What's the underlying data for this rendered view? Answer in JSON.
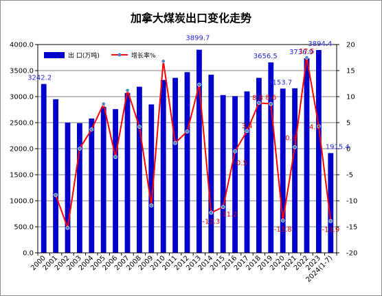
{
  "chart_data": {
    "type": "bar",
    "title": "加拿大煤炭出口变化走势",
    "categories": [
      "2000",
      "2001",
      "2002",
      "2003",
      "2004",
      "2005",
      "2006",
      "2007",
      "2008",
      "2009",
      "2010",
      "2011",
      "2012",
      "2013",
      "2014",
      "2015",
      "2016",
      "2017",
      "2018",
      "2019",
      "2020",
      "2021",
      "2022",
      "2023",
      "2024(1-7)"
    ],
    "series": [
      {
        "name": "出 口(万吨)",
        "type": "bar",
        "axis": "left",
        "color": "#0000cc",
        "values": [
          3242.2,
          2950,
          2500,
          2490,
          2580,
          2800,
          2760,
          3070,
          3190,
          2850,
          3320,
          3360,
          3470,
          3899.7,
          3420,
          3030,
          3010,
          3100,
          3360,
          3656.5,
          3153.7,
          3160,
          3736.9,
          3894.4,
          1915.4
        ]
      },
      {
        "name": "增长率%",
        "type": "line",
        "axis": "right",
        "color": "#ff0000",
        "marker_color": "#4f81bd",
        "values": [
          null,
          -8.9,
          -15.2,
          0.0,
          3.7,
          8.6,
          -1.6,
          11.2,
          4.2,
          -10.9,
          16.8,
          1.1,
          3.3,
          12.3,
          -12.3,
          -11.2,
          -0.5,
          3.4,
          8.8,
          8.6,
          -13.8,
          0.3,
          17.5,
          4.3,
          -13.9
        ]
      }
    ],
    "bar_labels": {
      "0": "3242.2",
      "13": "3899.7",
      "19": "3656.5",
      "20": "3153.7",
      "22": "3736.9",
      "23": "3894.4",
      "24": "1915.4"
    },
    "rate_labels": {
      "14": "-12.3",
      "15": "-11.2",
      "16": "-0.5",
      "17": "3.4",
      "18": "8.8",
      "19": "8.6",
      "20": "-13.8",
      "21": "0.3",
      "22": "17.5",
      "23": "4.3",
      "24": "-13.9"
    },
    "y_left": {
      "min": 0,
      "max": 4000,
      "step": 500,
      "tick_labels": [
        "0.0",
        "500.0",
        "1000.0",
        "1500.0",
        "2000.0",
        "2500.0",
        "3000.0",
        "3500.0",
        "4000.0"
      ]
    },
    "y_right": {
      "min": -20,
      "max": 20,
      "step": 5,
      "tick_labels": [
        "-20",
        "-15",
        "-10",
        "-5",
        "0",
        "5",
        "10",
        "15",
        "20"
      ]
    },
    "legend_position": "top-left",
    "grid": true
  }
}
